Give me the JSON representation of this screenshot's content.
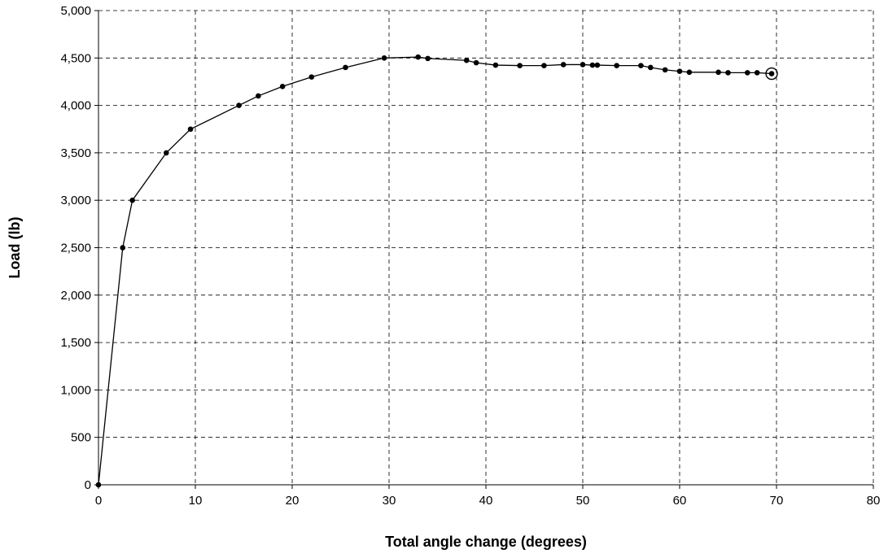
{
  "chart_data": {
    "type": "line",
    "title": "",
    "xlabel": "Total angle change (degrees)",
    "ylabel": "Load (lb)",
    "xlim": [
      0,
      80
    ],
    "ylim": [
      0,
      5000
    ],
    "x_ticks": [
      0,
      10,
      20,
      30,
      40,
      50,
      60,
      70,
      80
    ],
    "x_tick_labels": [
      "0",
      "10",
      "20",
      "30",
      "40",
      "50",
      "60",
      "70",
      "80"
    ],
    "y_ticks": [
      0,
      500,
      1000,
      1500,
      2000,
      2500,
      3000,
      3500,
      4000,
      4500,
      5000
    ],
    "y_tick_labels": [
      "0",
      "500",
      "1,000",
      "1,500",
      "2,000",
      "2,500",
      "3,000",
      "3,500",
      "4,000",
      "4,500",
      "5,000"
    ],
    "grid": true,
    "legend": "none",
    "line_color": "#000000",
    "end_marker": "circled-dot",
    "series": [
      {
        "x": [
          0,
          2.5,
          3.5,
          7,
          9.5,
          14.5,
          16.5,
          19,
          22,
          25.5,
          29.5,
          33,
          34,
          38,
          39,
          41,
          43.5,
          46,
          48,
          50,
          51,
          51.5,
          53.5,
          56,
          57,
          58.5,
          60,
          61,
          64,
          65,
          67,
          68,
          69.5
        ],
        "y": [
          0,
          2500,
          3000,
          3500,
          3750,
          4000,
          4100,
          4200,
          4300,
          4400,
          4500,
          4510,
          4495,
          4475,
          4450,
          4425,
          4420,
          4420,
          4430,
          4430,
          4425,
          4425,
          4420,
          4420,
          4400,
          4375,
          4360,
          4350,
          4350,
          4345,
          4345,
          4345,
          4335
        ]
      }
    ]
  }
}
